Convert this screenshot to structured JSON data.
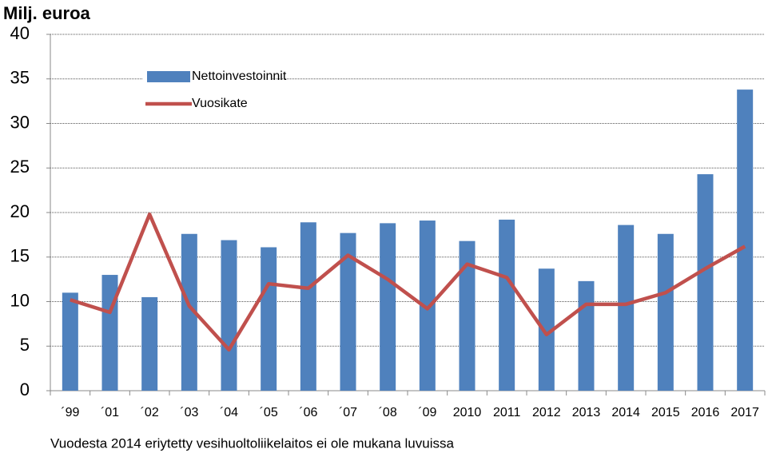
{
  "chart_data": {
    "type": "bar_line",
    "title": "Milj. euroa",
    "note": "Vuodesta 2014 eriytetty vesihuoltoliikelaitos ei ole mukana luvuissa",
    "categories": [
      "´99",
      "´01",
      "´02",
      "´03",
      "´04",
      "´05",
      "´06",
      "´07",
      "´08",
      "´09",
      "2010",
      "2011",
      "2012",
      "2013",
      "2014",
      "2015",
      "2016",
      "2017"
    ],
    "series": [
      {
        "name": "Nettoinvestoinnit",
        "type": "bar",
        "color": "#4f81bd",
        "values": [
          11.0,
          13.0,
          10.5,
          17.6,
          16.9,
          16.1,
          18.9,
          17.7,
          18.8,
          19.1,
          16.8,
          19.2,
          13.7,
          12.3,
          18.6,
          17.6,
          24.3,
          33.8
        ]
      },
      {
        "name": "Vuosikate",
        "type": "line",
        "color": "#c0504d",
        "values": [
          10.2,
          8.8,
          19.8,
          9.5,
          4.6,
          12.0,
          11.5,
          15.2,
          12.5,
          9.2,
          14.2,
          12.7,
          6.3,
          9.7,
          9.7,
          11.0,
          13.7,
          16.2
        ]
      }
    ],
    "ylim": [
      0,
      40
    ],
    "yticks": [
      0,
      5,
      10,
      15,
      20,
      25,
      30,
      35,
      40
    ],
    "grid": true,
    "legend": "upper left"
  }
}
